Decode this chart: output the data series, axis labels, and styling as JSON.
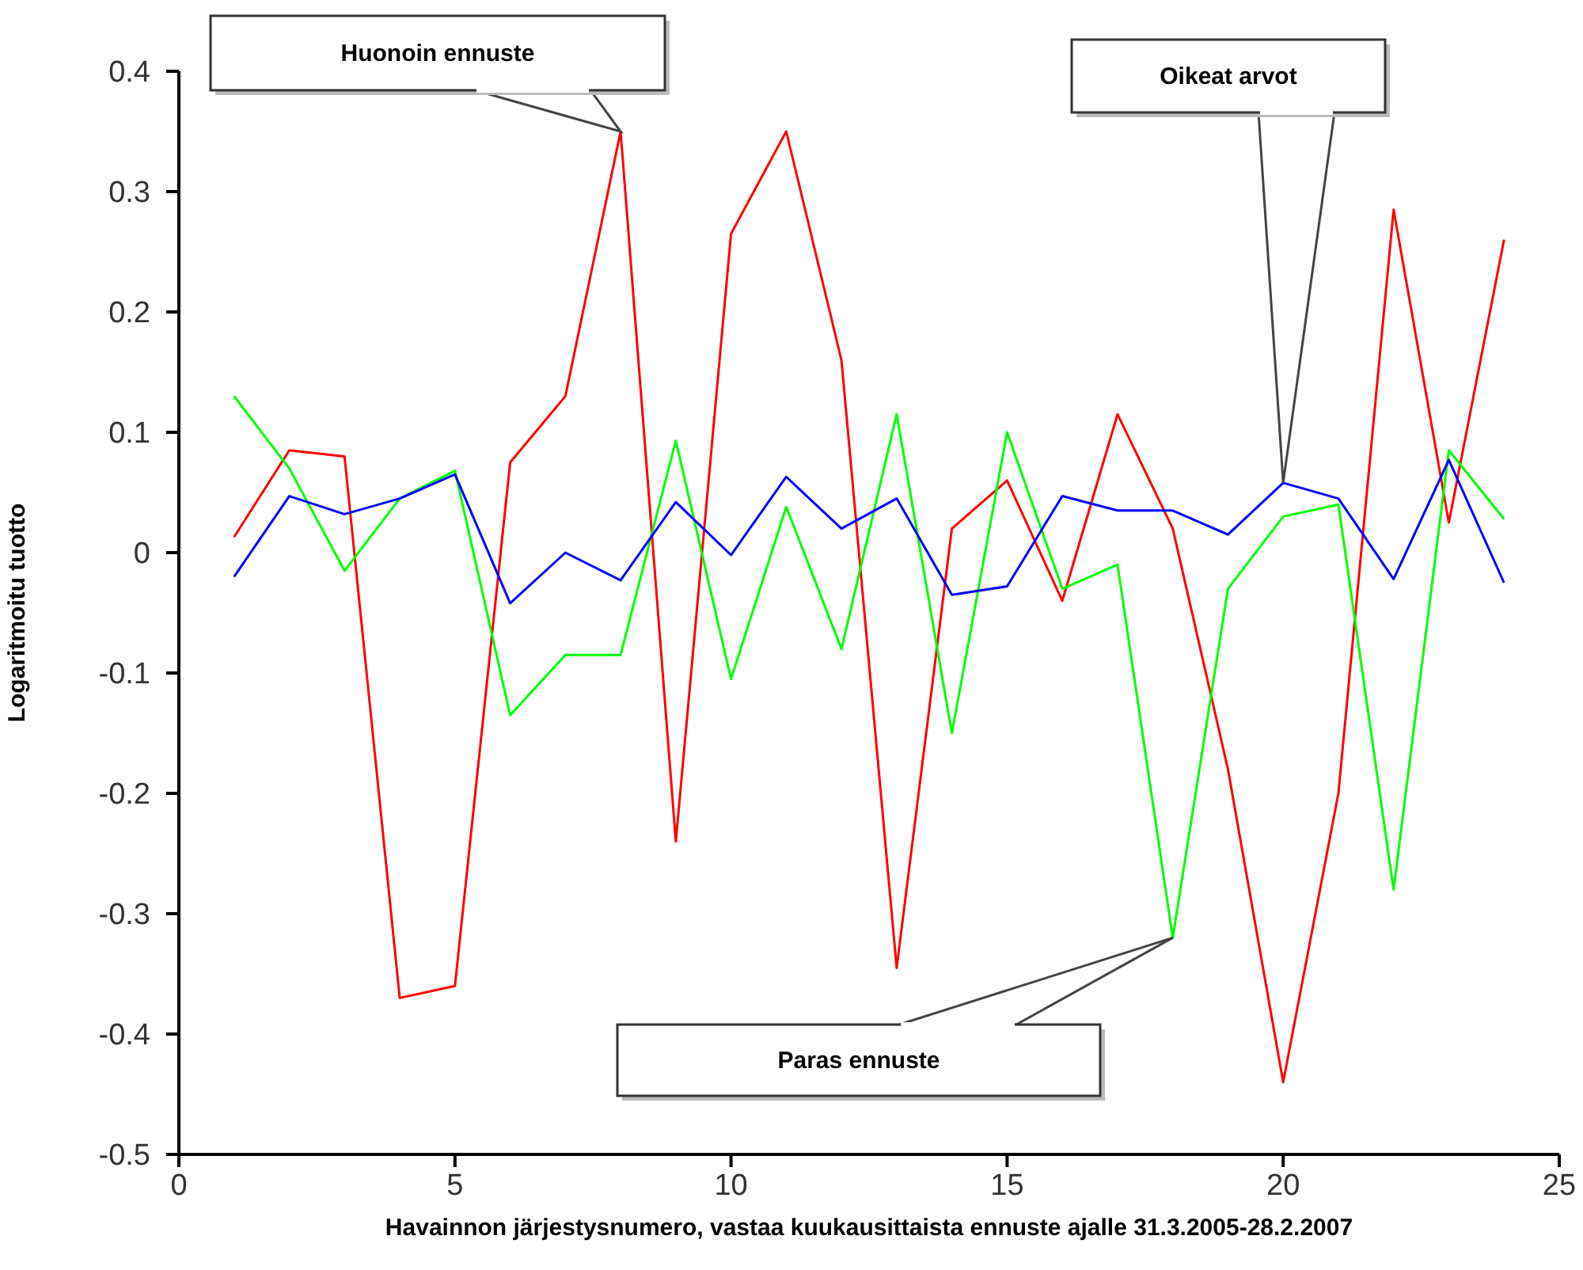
{
  "chart_data": {
    "type": "line",
    "xlabel": "Havainnon järjestysnumero, vastaa kuukausittaista ennuste ajalle 31.3.2005-28.2.2007",
    "ylabel": "Logaritmoitu tuotto",
    "x": [
      1,
      2,
      3,
      4,
      5,
      6,
      7,
      8,
      9,
      10,
      11,
      12,
      13,
      14,
      15,
      16,
      17,
      18,
      19,
      20,
      21,
      22,
      23,
      24
    ],
    "series": [
      {
        "color": "#ff0000",
        "values": [
          0.013,
          0.085,
          0.08,
          -0.37,
          -0.36,
          0.075,
          0.13,
          0.35,
          -0.24,
          0.265,
          0.35,
          0.16,
          -0.345,
          0.02,
          0.06,
          -0.04,
          0.115,
          0.02,
          -0.18,
          -0.44,
          -0.2,
          0.285,
          0.025,
          0.26
        ]
      },
      {
        "color": "#00ff00",
        "values": [
          0.13,
          0.07,
          -0.015,
          0.045,
          0.068,
          -0.135,
          -0.085,
          -0.085,
          0.093,
          -0.105,
          0.038,
          -0.08,
          0.115,
          -0.15,
          0.1,
          -0.03,
          -0.01,
          -0.32,
          -0.03,
          0.03,
          0.04,
          -0.28,
          0.085,
          0.028
        ]
      },
      {
        "color": "#0000ff",
        "values": [
          -0.02,
          0.047,
          0.032,
          0.045,
          0.065,
          -0.042,
          0,
          -0.023,
          0.042,
          -0.002,
          0.063,
          0.02,
          0.045,
          -0.035,
          -0.028,
          0.047,
          0.035,
          0.035,
          0.015,
          0.058,
          0.045,
          -0.022,
          0.077,
          -0.025
        ]
      }
    ],
    "xlim": [
      0,
      25
    ],
    "xticks": [
      0,
      5,
      10,
      15,
      20,
      25
    ],
    "ylim": [
      -0.5,
      0.4
    ],
    "yticks": [
      -0.5,
      -0.4,
      -0.3,
      -0.2,
      -0.1,
      0,
      0.1,
      0.2,
      0.3,
      0.4
    ],
    "grid": false,
    "legend": false,
    "marker": "none",
    "line_style": "solid",
    "annotations": [
      {
        "text": "Huonoin ennuste",
        "x": 8,
        "y": 0.35
      },
      {
        "text": "Oikeat arvot",
        "x": 20,
        "y": 0.058
      },
      {
        "text": "Paras ennuste",
        "x": 18,
        "y": -0.32
      }
    ]
  }
}
